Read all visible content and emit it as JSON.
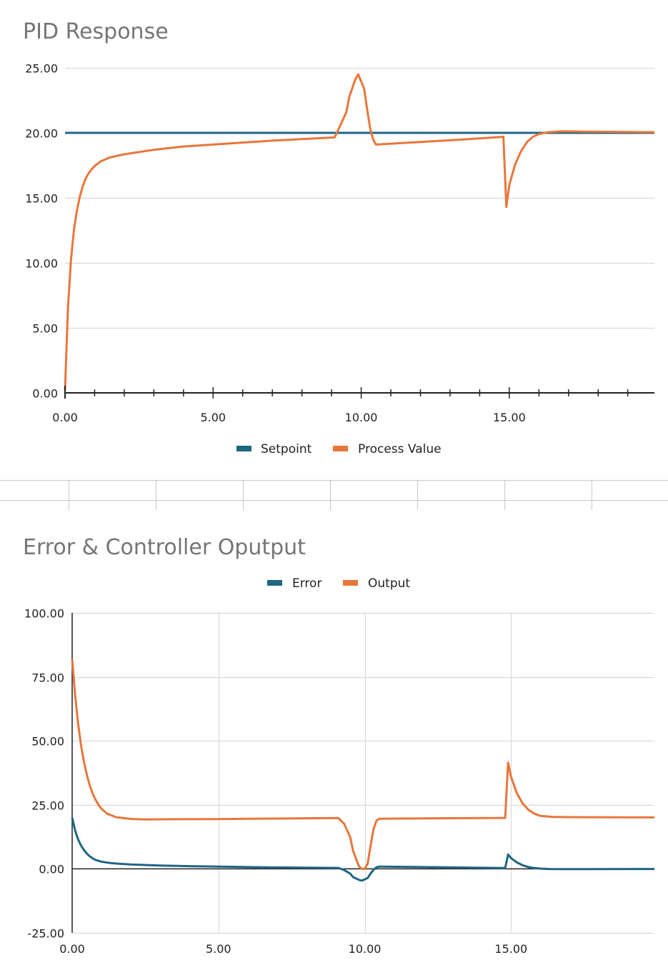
{
  "colors": {
    "blue": "#1f6584",
    "orange": "#e8763a",
    "grid": "#d9d9d9",
    "axis": "#222222",
    "title": "#757575"
  },
  "chart_data": [
    {
      "type": "line",
      "title": "PID Response",
      "xlabel": "",
      "ylabel": "",
      "xlim": [
        0,
        19.9
      ],
      "ylim": [
        0,
        25
      ],
      "x_ticks": [
        "0.00",
        "5.00",
        "10.00",
        "15.00"
      ],
      "y_ticks": [
        "0.00",
        "5.00",
        "10.00",
        "15.00",
        "20.00",
        "25.00"
      ],
      "grid": "horizontal",
      "legend": "bottom",
      "series": [
        {
          "name": "Setpoint",
          "color": "#1f6584",
          "points": [
            [
              0,
              20
            ],
            [
              19.9,
              20
            ]
          ]
        },
        {
          "name": "Process Value",
          "color": "#e8763a",
          "points": [
            [
              0,
              0.2
            ],
            [
              0.1,
              6.5
            ],
            [
              0.2,
              10.2
            ],
            [
              0.3,
              12.5
            ],
            [
              0.4,
              14.0
            ],
            [
              0.5,
              15.1
            ],
            [
              0.6,
              15.9
            ],
            [
              0.7,
              16.5
            ],
            [
              0.8,
              16.9
            ],
            [
              0.9,
              17.2
            ],
            [
              1.0,
              17.45
            ],
            [
              1.2,
              17.8
            ],
            [
              1.5,
              18.1
            ],
            [
              2.0,
              18.35
            ],
            [
              3.0,
              18.7
            ],
            [
              4.0,
              18.95
            ],
            [
              5.0,
              19.1
            ],
            [
              6.0,
              19.25
            ],
            [
              7.0,
              19.4
            ],
            [
              8.0,
              19.52
            ],
            [
              9.1,
              19.65
            ],
            [
              9.3,
              20.6
            ],
            [
              9.5,
              21.6
            ],
            [
              9.6,
              22.8
            ],
            [
              9.8,
              24.1
            ],
            [
              9.9,
              24.5
            ],
            [
              10.1,
              23.4
            ],
            [
              10.2,
              21.8
            ],
            [
              10.3,
              20.4
            ],
            [
              10.4,
              19.5
            ],
            [
              10.5,
              19.1
            ],
            [
              12.0,
              19.3
            ],
            [
              13.5,
              19.5
            ],
            [
              14.8,
              19.7
            ],
            [
              14.9,
              14.3
            ],
            [
              15.0,
              16.0
            ],
            [
              15.2,
              17.6
            ],
            [
              15.4,
              18.6
            ],
            [
              15.6,
              19.3
            ],
            [
              15.8,
              19.7
            ],
            [
              16.0,
              19.9
            ],
            [
              16.3,
              20.05
            ],
            [
              16.8,
              20.12
            ],
            [
              17.5,
              20.1
            ],
            [
              19.9,
              20.05
            ]
          ]
        }
      ]
    },
    {
      "type": "line",
      "title": "Error & Controller Oputput",
      "xlabel": "",
      "ylabel": "",
      "xlim": [
        0,
        19.9
      ],
      "ylim": [
        -25,
        100
      ],
      "x_ticks": [
        "0.00",
        "5.00",
        "10.00",
        "15.00"
      ],
      "y_ticks": [
        "-25.00",
        "0.00",
        "25.00",
        "50.00",
        "75.00",
        "100.00"
      ],
      "grid": "both",
      "legend": "top",
      "series": [
        {
          "name": "Error",
          "color": "#1f6584",
          "points": [
            [
              0,
              20
            ],
            [
              0.1,
              15
            ],
            [
              0.2,
              11.6
            ],
            [
              0.3,
              9.2
            ],
            [
              0.4,
              7.4
            ],
            [
              0.5,
              6.0
            ],
            [
              0.6,
              4.9
            ],
            [
              0.7,
              4.1
            ],
            [
              0.8,
              3.5
            ],
            [
              1.0,
              2.8
            ],
            [
              1.3,
              2.3
            ],
            [
              1.6,
              2.0
            ],
            [
              2.0,
              1.7
            ],
            [
              3.0,
              1.3
            ],
            [
              4.0,
              1.05
            ],
            [
              5.0,
              0.9
            ],
            [
              6.0,
              0.7
            ],
            [
              7.0,
              0.55
            ],
            [
              8.0,
              0.45
            ],
            [
              9.1,
              0.35
            ],
            [
              9.3,
              -0.5
            ],
            [
              9.5,
              -1.8
            ],
            [
              9.6,
              -3.2
            ],
            [
              9.8,
              -4.3
            ],
            [
              9.9,
              -4.6
            ],
            [
              10.1,
              -3.6
            ],
            [
              10.2,
              -1.8
            ],
            [
              10.3,
              -0.4
            ],
            [
              10.4,
              0.6
            ],
            [
              10.5,
              0.9
            ],
            [
              12.0,
              0.7
            ],
            [
              13.5,
              0.5
            ],
            [
              14.8,
              0.3
            ],
            [
              14.9,
              5.6
            ],
            [
              15.0,
              4.2
            ],
            [
              15.2,
              2.5
            ],
            [
              15.4,
              1.4
            ],
            [
              15.6,
              0.7
            ],
            [
              15.8,
              0.3
            ],
            [
              16.0,
              0.1
            ],
            [
              16.3,
              -0.05
            ],
            [
              16.8,
              -0.12
            ],
            [
              17.5,
              -0.1
            ],
            [
              19.9,
              -0.05
            ]
          ]
        },
        {
          "name": "Output",
          "color": "#e8763a",
          "points": [
            [
              0,
              82
            ],
            [
              0.1,
              68
            ],
            [
              0.2,
              57
            ],
            [
              0.3,
              48.5
            ],
            [
              0.4,
              42
            ],
            [
              0.5,
              36.8
            ],
            [
              0.6,
              32.6
            ],
            [
              0.7,
              29.4
            ],
            [
              0.8,
              27
            ],
            [
              0.9,
              25
            ],
            [
              1.0,
              23.5
            ],
            [
              1.2,
              21.5
            ],
            [
              1.5,
              20.2
            ],
            [
              2.0,
              19.5
            ],
            [
              2.5,
              19.3
            ],
            [
              3.0,
              19.35
            ],
            [
              4.0,
              19.4
            ],
            [
              5.0,
              19.45
            ],
            [
              6.0,
              19.55
            ],
            [
              7.0,
              19.65
            ],
            [
              8.0,
              19.75
            ],
            [
              9.1,
              19.85
            ],
            [
              9.3,
              17.5
            ],
            [
              9.5,
              12.5
            ],
            [
              9.6,
              7.0
            ],
            [
              9.8,
              1.0
            ],
            [
              9.9,
              0.0
            ],
            [
              10.0,
              0.0
            ],
            [
              10.1,
              2.0
            ],
            [
              10.2,
              9.0
            ],
            [
              10.3,
              15.5
            ],
            [
              10.4,
              18.8
            ],
            [
              10.5,
              19.6
            ],
            [
              12.0,
              19.7
            ],
            [
              13.5,
              19.8
            ],
            [
              14.8,
              19.9
            ],
            [
              14.9,
              41.5
            ],
            [
              15.0,
              36.0
            ],
            [
              15.2,
              29.5
            ],
            [
              15.4,
              25.5
            ],
            [
              15.6,
              23.0
            ],
            [
              15.8,
              21.5
            ],
            [
              16.0,
              20.7
            ],
            [
              16.4,
              20.3
            ],
            [
              17.0,
              20.2
            ],
            [
              19.9,
              20.1
            ]
          ]
        }
      ]
    }
  ]
}
